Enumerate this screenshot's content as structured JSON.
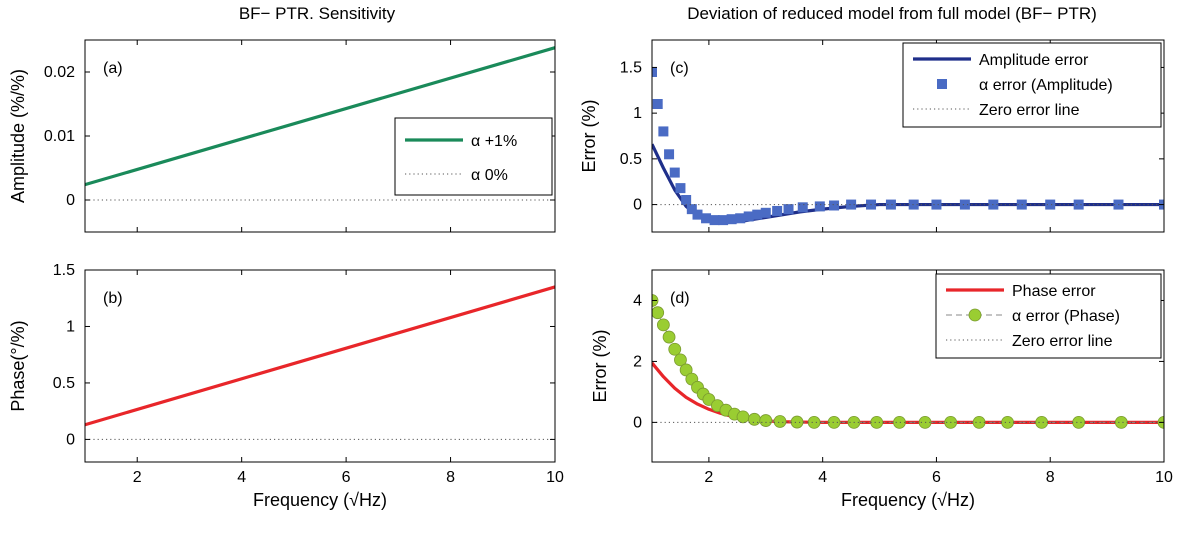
{
  "chart_data": [
    {
      "id": "a",
      "type": "line",
      "title": "BF− PTR. Sensitivity",
      "panel_label": "(a)",
      "xlabel": "",
      "ylabel": "Amplitude (%/%)",
      "xlim": [
        1,
        10
      ],
      "ylim": [
        -0.005,
        0.025
      ],
      "xticks": [
        2,
        4,
        6,
        8,
        10
      ],
      "xticklabels": [],
      "yticks": [
        0,
        0.01,
        0.02
      ],
      "yticklabels": [
        "0",
        "0.01",
        "0.02"
      ],
      "grid": false,
      "legend_position": "middle-right",
      "series": [
        {
          "name": "α +1%",
          "style": "line",
          "color": "#1a8a5a",
          "x": [
            1,
            10
          ],
          "y": [
            0.0024,
            0.0238
          ]
        },
        {
          "name": "α 0%",
          "style": "dotted",
          "color": "#555555",
          "x": [
            1,
            10
          ],
          "y": [
            0,
            0
          ]
        }
      ]
    },
    {
      "id": "b",
      "type": "line",
      "title": "",
      "panel_label": "(b)",
      "xlabel": "Frequency (√Hz)",
      "ylabel": "Phase(°/%)",
      "xlim": [
        1,
        10
      ],
      "ylim": [
        -0.2,
        1.5
      ],
      "xticks": [
        2,
        4,
        6,
        8,
        10
      ],
      "xticklabels": [
        "2",
        "4",
        "6",
        "8",
        "10"
      ],
      "yticks": [
        0,
        0.5,
        1,
        1.5
      ],
      "yticklabels": [
        "0",
        "0.5",
        "1",
        "1.5"
      ],
      "grid": false,
      "series": [
        {
          "style": "line",
          "color": "#e8262a",
          "x": [
            1,
            10
          ],
          "y": [
            0.13,
            1.35
          ]
        },
        {
          "style": "dotted",
          "color": "#555555",
          "x": [
            1,
            10
          ],
          "y": [
            0,
            0
          ]
        }
      ]
    },
    {
      "id": "c",
      "type": "line",
      "title": "Deviation of reduced model from full model (BF− PTR)",
      "panel_label": "(c)",
      "xlabel": "",
      "ylabel": "Error (%)",
      "xlim": [
        1,
        10
      ],
      "ylim": [
        -0.3,
        1.8
      ],
      "xticks": [
        2,
        4,
        6,
        8,
        10
      ],
      "xticklabels": [],
      "yticks": [
        0,
        0.5,
        1,
        1.5
      ],
      "yticklabels": [
        "0",
        "0.5",
        "1",
        "1.5"
      ],
      "grid": false,
      "legend_position": "top-right",
      "series": [
        {
          "name": "Amplitude error",
          "style": "line",
          "color": "#1f2f8a",
          "x": [
            1,
            1.2,
            1.4,
            1.6,
            1.8,
            2.0,
            2.2,
            2.4,
            2.6,
            2.8,
            3.0,
            3.3,
            3.6,
            4.0,
            4.5,
            5,
            6,
            7,
            8,
            9,
            10
          ],
          "y": [
            0.66,
            0.4,
            0.16,
            -0.02,
            -0.12,
            -0.17,
            -0.19,
            -0.19,
            -0.18,
            -0.16,
            -0.14,
            -0.11,
            -0.08,
            -0.05,
            -0.02,
            0,
            0,
            0,
            0,
            0,
            0
          ]
        },
        {
          "name": "α error (Amplitude)",
          "style": "square-marker",
          "color": "#4a6bc4",
          "x": [
            1.0,
            1.1,
            1.2,
            1.3,
            1.4,
            1.5,
            1.6,
            1.7,
            1.8,
            1.95,
            2.1,
            2.25,
            2.4,
            2.55,
            2.7,
            2.85,
            3.0,
            3.2,
            3.4,
            3.65,
            3.95,
            4.2,
            4.5,
            4.85,
            5.2,
            5.6,
            6.0,
            6.5,
            7.0,
            7.5,
            8.0,
            8.5,
            9.2,
            10.0
          ],
          "y": [
            1.45,
            1.1,
            0.8,
            0.55,
            0.35,
            0.18,
            0.05,
            -0.05,
            -0.11,
            -0.15,
            -0.17,
            -0.17,
            -0.16,
            -0.15,
            -0.13,
            -0.11,
            -0.09,
            -0.07,
            -0.05,
            -0.03,
            -0.02,
            -0.01,
            0,
            0,
            0,
            0,
            0,
            0,
            0,
            0,
            0,
            0,
            0,
            0
          ]
        },
        {
          "name": "Zero error line",
          "style": "dotted",
          "color": "#555555",
          "x": [
            1,
            10
          ],
          "y": [
            0,
            0
          ]
        }
      ]
    },
    {
      "id": "d",
      "type": "line",
      "title": "",
      "panel_label": "(d)",
      "xlabel": "Frequency (√Hz)",
      "ylabel": "Error (%)",
      "xlim": [
        1,
        10
      ],
      "ylim": [
        -1.3,
        5
      ],
      "xticks": [
        2,
        4,
        6,
        8,
        10
      ],
      "xticklabels": [
        "2",
        "4",
        "6",
        "8",
        "10"
      ],
      "yticks": [
        0,
        2,
        4
      ],
      "yticklabels": [
        "0",
        "2",
        "4"
      ],
      "grid": false,
      "legend_position": "top-right",
      "series": [
        {
          "name": "Phase error",
          "style": "line",
          "color": "#e8262a",
          "x": [
            1,
            1.2,
            1.4,
            1.6,
            1.8,
            2.0,
            2.2,
            2.4,
            2.6,
            2.8,
            3.0,
            3.3,
            3.6,
            4,
            5,
            6,
            7,
            8,
            9,
            10
          ],
          "y": [
            1.95,
            1.5,
            1.12,
            0.82,
            0.6,
            0.43,
            0.3,
            0.2,
            0.13,
            0.08,
            0.05,
            0.02,
            0.01,
            0,
            0,
            0,
            0,
            0,
            0,
            0
          ]
        },
        {
          "name": "α error (Phase)",
          "style": "circle-marker-dashed",
          "color": "#9acd32",
          "x": [
            1.0,
            1.1,
            1.2,
            1.3,
            1.4,
            1.5,
            1.6,
            1.7,
            1.8,
            1.9,
            2.0,
            2.15,
            2.3,
            2.45,
            2.6,
            2.8,
            3.0,
            3.25,
            3.55,
            3.85,
            4.2,
            4.55,
            4.95,
            5.35,
            5.8,
            6.25,
            6.75,
            7.25,
            7.85,
            8.5,
            9.25,
            10.0
          ],
          "y": [
            4.0,
            3.6,
            3.2,
            2.8,
            2.4,
            2.05,
            1.72,
            1.42,
            1.15,
            0.93,
            0.75,
            0.55,
            0.4,
            0.27,
            0.18,
            0.1,
            0.06,
            0.03,
            0.01,
            0,
            0,
            0,
            0,
            0,
            0,
            0,
            0,
            0,
            0,
            0,
            0,
            0
          ]
        },
        {
          "name": "Zero error line",
          "style": "dotted",
          "color": "#555555",
          "x": [
            1,
            10
          ],
          "y": [
            0,
            0
          ]
        }
      ]
    }
  ]
}
